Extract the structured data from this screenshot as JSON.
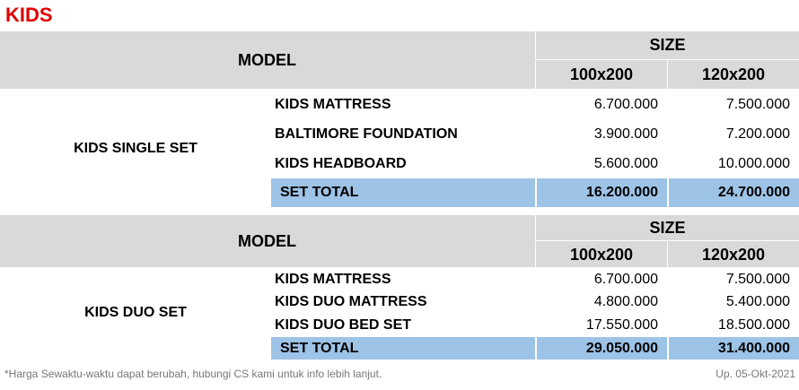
{
  "page_title": "KIDS",
  "tables": [
    {
      "header": {
        "model": "MODEL",
        "size": "SIZE",
        "size1": "100x200",
        "size2": "120x200"
      },
      "set_name": "KIDS SINGLE SET",
      "rows": [
        {
          "item": "KIDS MATTRESS",
          "p1": "6.700.000",
          "p2": "7.500.000"
        },
        {
          "item": "BALTIMORE FOUNDATION",
          "p1": "3.900.000",
          "p2": "7.200.000"
        },
        {
          "item": "KIDS HEADBOARD",
          "p1": "5.600.000",
          "p2": "10.000.000"
        }
      ],
      "total": {
        "label": "SET TOTAL",
        "p1": "16.200.000",
        "p2": "24.700.000"
      }
    },
    {
      "header": {
        "model": "MODEL",
        "size": "SIZE",
        "size1": "100x200",
        "size2": "120x200"
      },
      "set_name": "KIDS DUO SET",
      "rows": [
        {
          "item": "KIDS MATTRESS",
          "p1": "6.700.000",
          "p2": "7.500.000"
        },
        {
          "item": "KIDS DUO MATTRESS",
          "p1": "4.800.000",
          "p2": "5.400.000"
        },
        {
          "item": "KIDS DUO BED SET",
          "p1": "17.550.000",
          "p2": "18.500.000"
        }
      ],
      "total": {
        "label": "SET TOTAL",
        "p1": "29.050.000",
        "p2": "31.400.000"
      }
    }
  ],
  "footnote": "*Harga Sewaktu-waktu dapat berubah, hubungi CS kami untuk info lebih lanjut.",
  "update_note": "Up. 05-Okt-2021"
}
